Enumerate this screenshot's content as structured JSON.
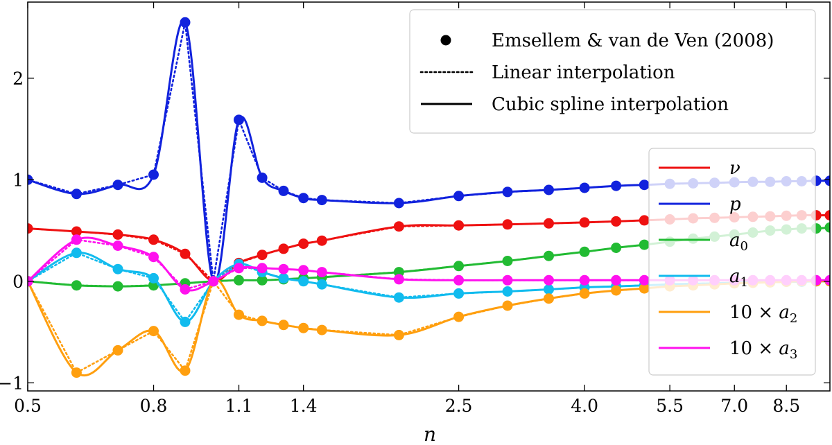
{
  "chart_data": {
    "type": "line",
    "title": "",
    "xlabel": "n",
    "ylabel": "",
    "xscale": "log",
    "xlim": [
      0.5,
      10.0
    ],
    "ylim": [
      -1.08,
      2.75
    ],
    "x_ticks": [
      {
        "value": 0.5,
        "label": "0.5"
      },
      {
        "value": 0.8,
        "label": "0.8"
      },
      {
        "value": 1.1,
        "label": "1.1"
      },
      {
        "value": 1.4,
        "label": "1.4"
      },
      {
        "value": 2.5,
        "label": "2.5"
      },
      {
        "value": 4.0,
        "label": "4.0"
      },
      {
        "value": 5.5,
        "label": "5.5"
      },
      {
        "value": 7.0,
        "label": "7.0"
      },
      {
        "value": 8.5,
        "label": "8.5"
      }
    ],
    "y_ticks": [
      {
        "value": -1,
        "label": "−1"
      },
      {
        "value": 0,
        "label": "0"
      },
      {
        "value": 1,
        "label": "1"
      },
      {
        "value": 2,
        "label": "2"
      }
    ],
    "legend_styles": {
      "position": "top-right",
      "entries": [
        {
          "label": "Emsellem & van de Ven (2008)",
          "style": "marker"
        },
        {
          "label": "Linear interpolation",
          "style": "dotted"
        },
        {
          "label": "Cubic spline interpolation",
          "style": "solid"
        }
      ]
    },
    "legend_series_position": "right",
    "x": [
      0.5,
      0.6,
      0.7,
      0.8,
      0.9,
      1.0,
      1.1,
      1.2,
      1.3,
      1.4,
      1.5,
      2.0,
      2.5,
      3.0,
      3.5,
      4.0,
      4.5,
      5.0,
      5.5,
      6.0,
      6.5,
      7.0,
      7.5,
      8.0,
      8.5,
      9.0,
      9.5,
      10.0
    ],
    "series": [
      {
        "name": "ν",
        "label_base": "ν",
        "label_sub": "",
        "label_prefix": "",
        "color": "#ee1111",
        "values": [
          0.52,
          0.49,
          0.46,
          0.41,
          0.27,
          0.0,
          0.18,
          0.26,
          0.32,
          0.37,
          0.4,
          0.54,
          0.55,
          0.56,
          0.57,
          0.58,
          0.59,
          0.6,
          0.61,
          0.62,
          0.625,
          0.63,
          0.635,
          0.64,
          0.645,
          0.65,
          0.65,
          0.65
        ]
      },
      {
        "name": "p",
        "label_base": "p",
        "label_sub": "",
        "label_prefix": "",
        "color": "#1122dd",
        "values": [
          1.0,
          0.86,
          0.95,
          1.05,
          2.55,
          0.0,
          1.59,
          1.02,
          0.89,
          0.82,
          0.8,
          0.77,
          0.84,
          0.88,
          0.9,
          0.92,
          0.94,
          0.95,
          0.96,
          0.965,
          0.97,
          0.975,
          0.98,
          0.98,
          0.985,
          0.985,
          0.99,
          0.99
        ]
      },
      {
        "name": "a0",
        "label_base": "a",
        "label_sub": "0",
        "label_prefix": "",
        "color": "#22bb33",
        "values": [
          0.0,
          -0.04,
          -0.05,
          -0.04,
          -0.02,
          0.0,
          0.01,
          0.01,
          0.02,
          0.03,
          0.04,
          0.09,
          0.15,
          0.2,
          0.25,
          0.29,
          0.33,
          0.36,
          0.39,
          0.42,
          0.44,
          0.46,
          0.48,
          0.5,
          0.51,
          0.52,
          0.52,
          0.53
        ]
      },
      {
        "name": "a1",
        "label_base": "a",
        "label_sub": "1",
        "label_prefix": "",
        "color": "#11bbee",
        "values": [
          0.0,
          0.28,
          0.12,
          0.03,
          -0.4,
          0.0,
          0.17,
          0.09,
          0.03,
          0.0,
          -0.03,
          -0.16,
          -0.12,
          -0.1,
          -0.08,
          -0.06,
          -0.05,
          -0.04,
          -0.03,
          -0.025,
          -0.02,
          -0.015,
          -0.01,
          -0.01,
          -0.005,
          -0.005,
          0.0,
          0.0
        ]
      },
      {
        "name": "10 × a2",
        "label_base": "a",
        "label_sub": "2",
        "label_prefix": "10 × ",
        "color": "#ff9f0f",
        "values": [
          0.0,
          -0.9,
          -0.68,
          -0.49,
          -0.88,
          0.0,
          -0.33,
          -0.39,
          -0.43,
          -0.46,
          -0.48,
          -0.53,
          -0.35,
          -0.24,
          -0.17,
          -0.12,
          -0.09,
          -0.07,
          -0.05,
          -0.04,
          -0.03,
          -0.02,
          -0.015,
          -0.01,
          -0.005,
          0.0,
          0.0,
          0.0
        ]
      },
      {
        "name": "10 × a3",
        "label_base": "a",
        "label_sub": "3",
        "label_prefix": "10 × ",
        "color": "#ff11ee",
        "values": [
          0.0,
          0.41,
          0.35,
          0.24,
          -0.08,
          0.0,
          0.13,
          0.13,
          0.12,
          0.11,
          0.09,
          0.02,
          0.01,
          0.01,
          0.01,
          0.01,
          0.01,
          0.01,
          0.01,
          0.01,
          0.01,
          0.01,
          0.01,
          0.01,
          0.01,
          0.01,
          0.01,
          0.01
        ]
      }
    ]
  }
}
